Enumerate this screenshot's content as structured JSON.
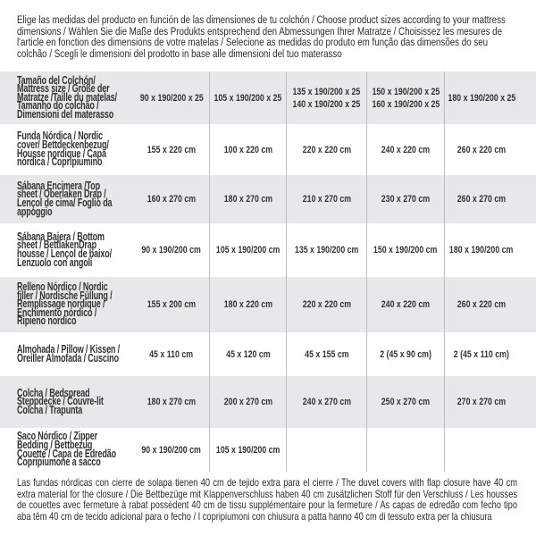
{
  "intro": "Elige las medidas del producto en función de las dimensiones de tu colchón / Choose product sizes according to your mattress dimensions / Wählen Sie die Maße des Produkts entsprechend den Abmessungen Ihrer Matratze / Choisissez les mesures de l'article en fonction des dimensions de votre matelas / Selecione as medidas do produto em função das dimensões do seu colchão / Scegli le dimensioni del prodotto in base alle dimensioni del tuo materasso",
  "table": {
    "rows": [
      {
        "label": "Tamaño del Colchón/ Mattress size / Größe der Matratze /Taille du matelas/ Tamanho do colchão / Dimensioni del materasso",
        "values": [
          "90 x 190/200 x 25",
          "105 x 190/200 x 25",
          "135 x 190/200 x 25\n140 x 190/200 x 25",
          "150 x 190/200 x 25\n160 x 190/200 x 25",
          "180 x 190/200 x 25"
        ]
      },
      {
        "label": "Funda Nórdica / Nordic cover/ Bettdeckenbezug/ Housse nordique / Capa nórdica / Copripiumino",
        "values": [
          "155 x 220 cm",
          "100 x 220 cm",
          "220 x 220 cm",
          "240 x 220 cm",
          "260 x 220 cm"
        ]
      },
      {
        "label": "Sábana Encimera /Top sheet / Oberlaken Drap / Lençol de cima/ Foglio da appoggio",
        "values": [
          "160 x 270 cm",
          "180 x 270 cm",
          "210 x 270 cm",
          "230 x 270 cm",
          "260 x 270 cm"
        ]
      },
      {
        "label": "Sábana Bajera / Bottom sheet / BettlakenDrap housse / Lençol de baixo/ Lenzuolo con angoli",
        "values": [
          "90 x 190/200 cm",
          "105 x 190/200 cm",
          "135 x 190/200 cm",
          "150 x 190/200 cm",
          "180 x 190/200 cm"
        ]
      },
      {
        "label": "Relleno Nórdico / Nordic filler / Nordische Füllung / Remplissage nordique / Enchimento nórdico / Ripieno nordico",
        "values": [
          "155 x 200 cm",
          "180 x 220 cm",
          "220 x 220 cm",
          "240 x 220 cm",
          "260 x 220 cm"
        ]
      },
      {
        "label": "Almohada / Pillow / Kissen / Oreiller Almofada / Cuscino",
        "values": [
          "45 x 110 cm",
          "45 x 120 cm",
          "45 x 155 cm",
          "2 (45 x 90 cm)",
          "2 (45 x 110 cm)"
        ]
      },
      {
        "label": "Colcha / Bedspread Steppdecke / Couvre-lit Colcha / Trapunta",
        "values": [
          "180 x 270 cm",
          "200 x 270 cm",
          "240 x 270 cm",
          "250 x 270 cm",
          "270 x 270 cm"
        ]
      },
      {
        "label": "Saco Nórdico / Zipper Bedding / Bettbezug Couette / Capa de Edredão Copripiumone a sacco",
        "values": [
          "90 x 190/200 cm",
          "105 x 190/200 cm",
          "",
          "",
          ""
        ]
      }
    ]
  },
  "footer": "Las fundas nórdicas con cierre de solapa tienen 40 cm de tejido extra para el cierre / The duvet covers with flap closure have 40 cm extra material for the closure / Die Bettbezüge mit Klappenverschluss haben 40 cm zusätzlichen Stoff für den Verschluss / Les housses de couettes avec fermeture à rabat possèdent 40 cm de tissu supplémentaire pour la fermeture / As capas de edredão com fecho tipo aba têm 40 cm de tecido adicional para o fecho / I copripiumoni con chiusura a patta hanno 40 cm di tessuto extra per la chiusura",
  "colors": {
    "row_gray": "#e8e8ea",
    "text": "#2a2a2a",
    "divider": "#bdbdbd"
  }
}
